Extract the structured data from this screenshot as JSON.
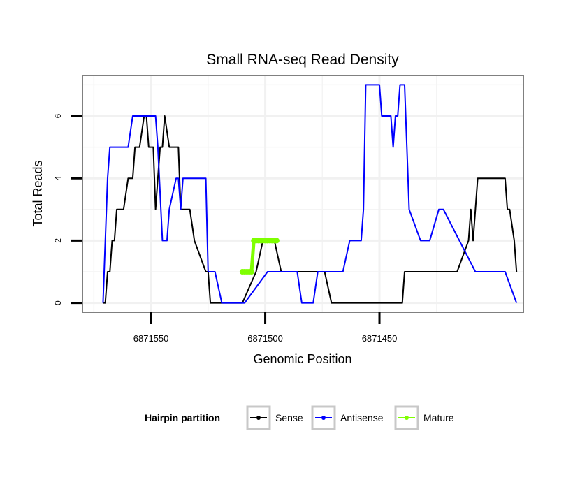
{
  "chart_data": {
    "type": "line",
    "title": "Small RNA-seq Read Density",
    "xlabel": "Genomic Position",
    "ylabel": "Total Reads",
    "x_reversed": true,
    "xlim": [
      6871580,
      6871387
    ],
    "ylim": [
      -0.3,
      7.3
    ],
    "x_ticks": [
      6871550,
      6871500,
      6871450
    ],
    "x_tick_labels": [
      "6871550",
      "6871500",
      "6871450"
    ],
    "y_ticks": [
      0,
      2,
      4,
      6
    ],
    "y_tick_labels": [
      "0",
      "2",
      "4",
      "6"
    ],
    "grid": true,
    "legend": {
      "title": "Hairpin partition",
      "position": "bottom",
      "entries": [
        "Sense",
        "Antisense",
        "Mature"
      ]
    },
    "series": [
      {
        "name": "Sense",
        "color": "#000000",
        "x": [
          6871571,
          6871570,
          6871569,
          6871568,
          6871567,
          6871566,
          6871565,
          6871563,
          6871562,
          6871560,
          6871558,
          6871557,
          6871556,
          6871555,
          6871553,
          6871552,
          6871551,
          6871550,
          6871549,
          6871548,
          6871547,
          6871546,
          6871545,
          6871544,
          6871542,
          6871541,
          6871540,
          6871539,
          6871538,
          6871537,
          6871536,
          6871533,
          6871531,
          6871526,
          6871525,
          6871524,
          6871522,
          6871520,
          6871519,
          6871518,
          6871515,
          6871510,
          6871504,
          6871501,
          6871498,
          6871497,
          6871496,
          6871493,
          6871477,
          6871476,
          6871475,
          6871474,
          6871471,
          6871470,
          6871469,
          6871467,
          6871465,
          6871440,
          6871439,
          6871438,
          6871437,
          6871436,
          6871433,
          6871427,
          6871416,
          6871411,
          6871410,
          6871409,
          6871407,
          6871395,
          6871394,
          6871393,
          6871391,
          6871390
        ],
        "y": [
          0,
          0,
          1,
          1,
          2,
          2,
          3,
          3,
          3,
          4,
          4,
          5,
          5,
          5,
          6,
          6,
          5,
          5,
          5,
          3,
          4,
          5,
          5,
          6,
          5,
          5,
          5,
          5,
          5,
          3,
          3,
          3,
          2,
          1,
          1,
          0,
          0,
          0,
          0,
          0,
          0,
          0,
          1,
          2,
          2,
          2,
          2,
          1,
          1,
          1,
          1,
          1,
          0,
          0,
          0,
          0,
          0,
          0,
          1,
          1,
          1,
          1,
          1,
          1,
          1,
          2,
          3,
          2,
          4,
          4,
          3,
          3,
          2,
          1
        ]
      },
      {
        "name": "Antisense",
        "color": "#0000ff",
        "x": [
          6871571,
          6871569,
          6871568,
          6871567,
          6871560,
          6871558,
          6871549,
          6871548,
          6871547,
          6871545,
          6871544,
          6871543,
          6871542,
          6871539,
          6871538,
          6871537,
          6871536,
          6871534,
          6871526,
          6871525,
          6871523,
          6871522,
          6871519,
          6871509,
          6871499,
          6871486,
          6871484,
          6871479,
          6871477,
          6871466,
          6871463,
          6871458,
          6871457,
          6871456,
          6871451,
          6871450,
          6871449,
          6871445,
          6871444,
          6871443,
          6871442,
          6871441,
          6871439,
          6871438,
          6871437,
          6871432,
          6871428,
          6871424,
          6871422,
          6871408,
          6871395,
          6871390
        ],
        "y": [
          0,
          4,
          5,
          5,
          5,
          6,
          6,
          6,
          5,
          2,
          2,
          2,
          3,
          4,
          4,
          3,
          4,
          4,
          4,
          1,
          1,
          1,
          0,
          0,
          1,
          1,
          0,
          0,
          1,
          1,
          2,
          2,
          3,
          7,
          7,
          7,
          6,
          6,
          5,
          6,
          6,
          7,
          7,
          5,
          3,
          2,
          2,
          3,
          3,
          1,
          1,
          0
        ]
      },
      {
        "name": "Mature",
        "color": "#7fff00",
        "x": [
          6871510,
          6871509,
          6871508,
          6871507,
          6871506,
          6871505,
          6871504,
          6871503,
          6871502,
          6871501,
          6871500,
          6871499,
          6871498,
          6871497,
          6871496,
          6871495
        ],
        "y": [
          1,
          1,
          1,
          1,
          1,
          2,
          2,
          2,
          2,
          2,
          2,
          2,
          2,
          2,
          2,
          2
        ]
      }
    ]
  }
}
